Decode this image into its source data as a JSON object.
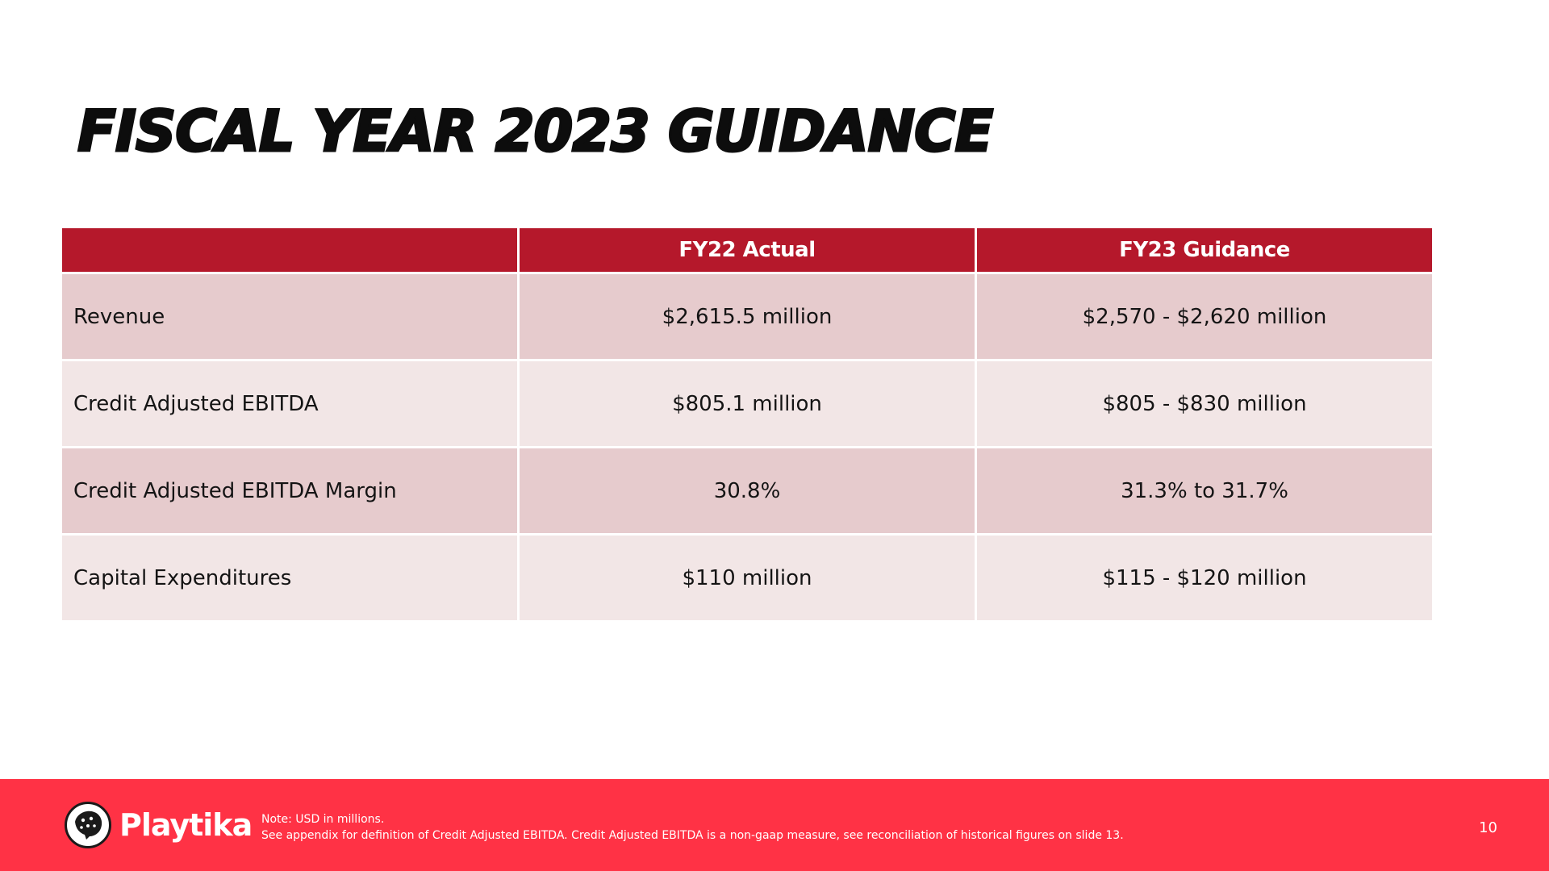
{
  "title": "FISCAL YEAR 2023 GUIDANCE",
  "table": {
    "headers": [
      "",
      "FY22 Actual",
      "FY23 Guidance"
    ],
    "rows": [
      {
        "label": "Revenue",
        "fy22": "$2,615.5 million",
        "fy23": "$2,570 - $2,620 million"
      },
      {
        "label": "Credit Adjusted EBITDA",
        "fy22": "$805.1 million",
        "fy23": "$805 - $830 million"
      },
      {
        "label": "Credit Adjusted EBITDA Margin",
        "fy22": "30.8%",
        "fy23": "31.3% to 31.7%"
      },
      {
        "label": "Capital Expenditures",
        "fy22": "$110 million",
        "fy23": "$115 - $120 million"
      }
    ]
  },
  "footer": {
    "logo_text": "Playtika",
    "logo_icon": "cheetah-icon",
    "note_line1": "Note:  USD in millions.",
    "note_line2": "See appendix for definition of Credit Adjusted EBITDA. Credit Adjusted EBITDA is a non-gaap measure, see reconciliation of historical figures on slide 13.",
    "page_number": "10"
  },
  "colors": {
    "header_red": "#b5182b",
    "row_dark": "#e6cbcd",
    "row_light": "#f2e6e6",
    "footer_red": "#ff3245"
  }
}
